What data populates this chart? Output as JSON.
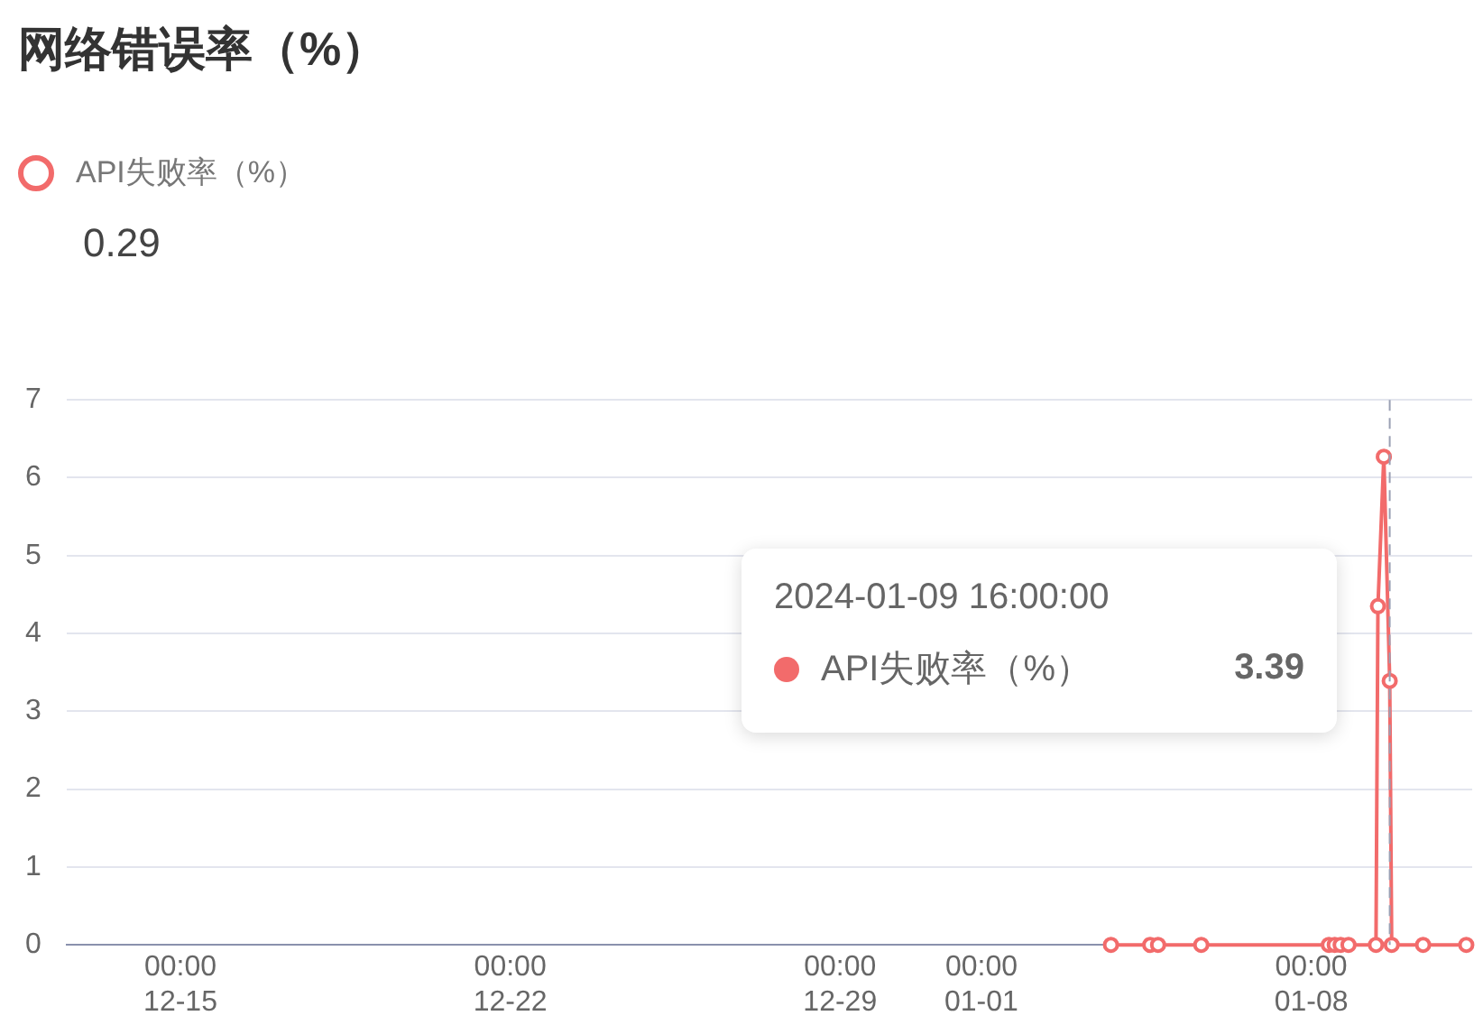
{
  "chart_data": {
    "type": "line",
    "title": "网络错误率（%）",
    "annotations": [
      "0.29",
      "2024-01-09 16:00:00",
      "API失败率（%）",
      "3.39"
    ],
    "x": [
      "2024-01-03T18:00",
      "2024-01-04T14:00",
      "2024-01-04T18:00",
      "2024-01-05T16:00",
      "2024-01-08T09:00",
      "2024-01-08T12:00",
      "2024-01-08T15:00",
      "2024-01-08T19:00",
      "2024-01-09T09:00",
      "2024-01-09T10:00",
      "2024-01-09T13:00",
      "2024-01-09T16:00",
      "2024-01-09T17:00",
      "2024-01-10T09:00",
      "2024-01-11T07:00"
    ],
    "series": [
      {
        "name": "API失败率（%）",
        "color": "#f26b6b",
        "values": [
          0,
          0,
          0,
          0,
          0,
          0,
          0,
          0,
          0,
          4.35,
          6.27,
          3.39,
          0,
          0,
          0
        ]
      }
    ],
    "xlim": [
      "2023-12-12T14:00",
      "2024-01-11T10:00"
    ],
    "xticks": [
      {
        "value": "2023-12-15T00:00",
        "label": "00:00\n12-15"
      },
      {
        "value": "2023-12-22T00:00",
        "label": "00:00\n12-22"
      },
      {
        "value": "2023-12-29T00:00",
        "label": "00:00\n12-29"
      },
      {
        "value": "2024-01-01T00:00",
        "label": "00:00\n01-01"
      },
      {
        "value": "2024-01-08T00:00",
        "label": "00:00\n01-08"
      }
    ],
    "ylim": [
      0,
      7
    ],
    "yticks": [
      0,
      1,
      2,
      3,
      4,
      5,
      6,
      7
    ],
    "ref_lines": [
      {
        "axis": "x",
        "value": "2024-01-09T16:00",
        "line_style": "dashed",
        "color": "#9aa0b4"
      }
    ],
    "grid": "y",
    "legend": "top left",
    "marker": "circle",
    "line_style": "solid"
  }
}
